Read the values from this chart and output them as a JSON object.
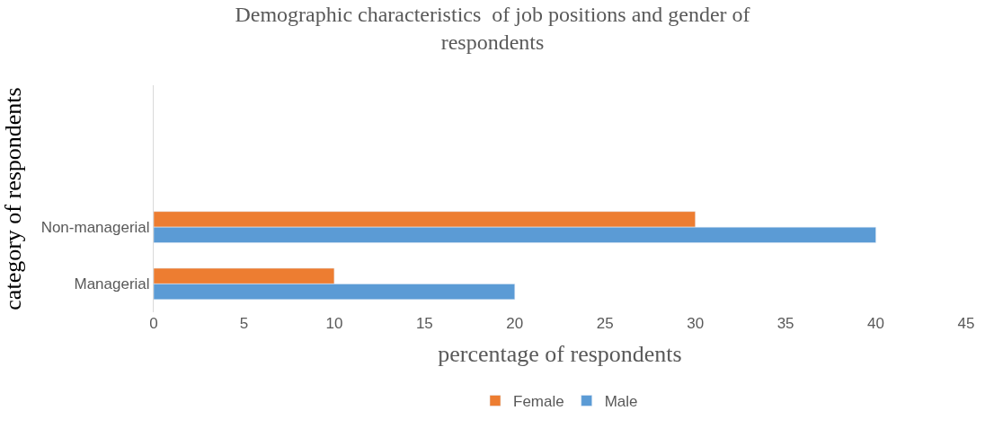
{
  "chart_data": {
    "type": "bar",
    "orientation": "horizontal",
    "title": "Demographic characteristics  of job positions and gender of respondents",
    "xlabel": "percentage of respondents",
    "ylabel": "category of respondents",
    "categories": [
      null,
      null,
      "Non-managerial",
      "Managerial"
    ],
    "series": [
      {
        "name": "Female",
        "color": "#ed7d31",
        "values": [
          null,
          null,
          30,
          10
        ]
      },
      {
        "name": "Male",
        "color": "#5b9bd5",
        "values": [
          null,
          null,
          40,
          20
        ]
      }
    ],
    "xlim": [
      0,
      45
    ],
    "xticks": [
      0,
      5,
      10,
      15,
      20,
      25,
      30,
      35,
      40,
      45
    ],
    "legend": "bottom"
  }
}
